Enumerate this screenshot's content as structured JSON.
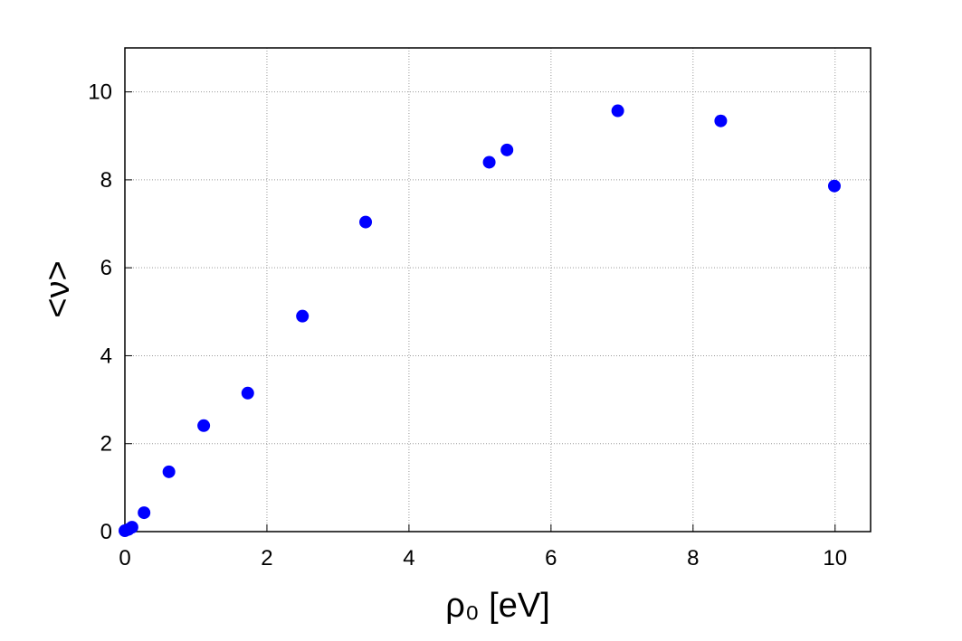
{
  "chart_data": {
    "type": "scatter",
    "x_label": "ρ₀ [eV]",
    "y_label": "<ν>",
    "series": [
      {
        "color": "#0000ff",
        "x": [
          0,
          0.05,
          0.1,
          0.27,
          0.62,
          1.11,
          1.73,
          2.5,
          3.39,
          5.13,
          5.38,
          6.94,
          8.39,
          9.99
        ],
        "values": [
          0.02,
          0.05,
          0.1,
          0.43,
          1.36,
          2.41,
          3.15,
          4.9,
          7.04,
          8.4,
          8.68,
          9.57,
          9.34,
          7.86
        ]
      }
    ],
    "xlim": [
      0,
      10.5
    ],
    "xticks": [
      0,
      2,
      4,
      6,
      8,
      10
    ],
    "ylim": [
      0,
      11
    ],
    "yticks": [
      0,
      2,
      4,
      6,
      8,
      10
    ],
    "grid": true
  }
}
